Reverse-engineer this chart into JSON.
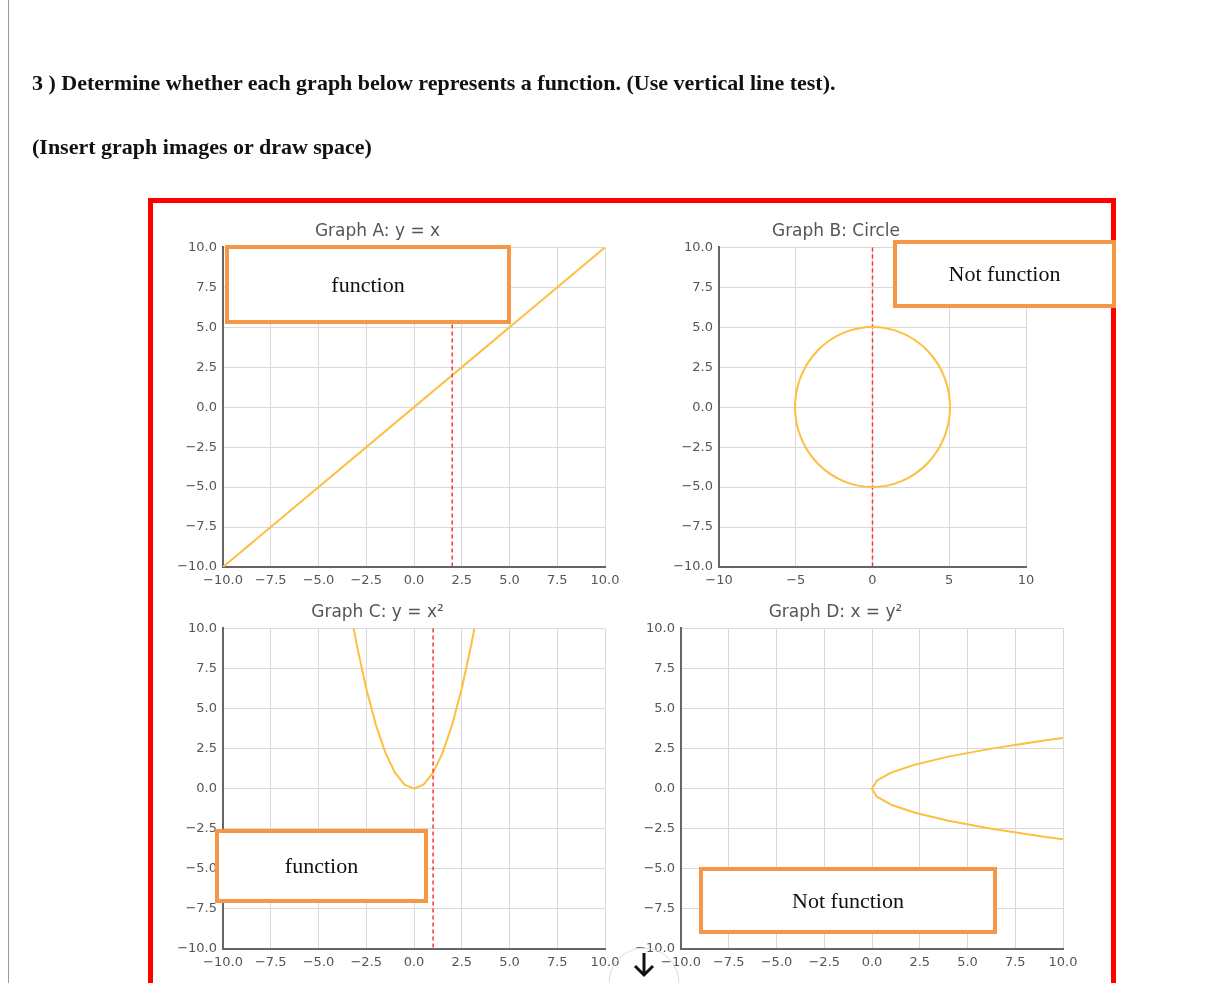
{
  "chart_data": [
    {
      "type": "line",
      "title": "Graph A: y = x",
      "annotations": [
        "3 ) Determine whether each graph below represents a function. (Use vertical line test).",
        "(Insert graph images or draw space)",
        "function"
      ],
      "series": [
        {
          "color": "#fdbf40",
          "x": [
            -10,
            10
          ],
          "values": [
            -10,
            10
          ]
        }
      ],
      "xlim": [
        -10,
        10
      ],
      "ylim": [
        -10,
        10
      ],
      "xticks": [
        {
          "value": -10,
          "label": "−10.0"
        },
        {
          "value": -7.5,
          "label": "−7.5"
        },
        {
          "value": -5,
          "label": "−5.0"
        },
        {
          "value": -2.5,
          "label": "−2.5"
        },
        {
          "value": 0,
          "label": "0.0"
        },
        {
          "value": 2.5,
          "label": "2.5"
        },
        {
          "value": 5,
          "label": "5.0"
        },
        {
          "value": 7.5,
          "label": "7.5"
        },
        {
          "value": 10,
          "label": "10.0"
        }
      ],
      "yticks": [
        {
          "value": -10,
          "label": "−10.0"
        },
        {
          "value": -7.5,
          "label": "−7.5"
        },
        {
          "value": -5,
          "label": "−5.0"
        },
        {
          "value": -2.5,
          "label": "−2.5"
        },
        {
          "value": 0,
          "label": "0.0"
        },
        {
          "value": 2.5,
          "label": "2.5"
        },
        {
          "value": 5,
          "label": "5.0"
        },
        {
          "value": 7.5,
          "label": "7.5"
        },
        {
          "value": 10,
          "label": "10.0"
        }
      ],
      "ref_lines": [
        {
          "axis": "x",
          "value": 2,
          "color": "#ff3333",
          "line_style": "dashed"
        }
      ],
      "grid": true,
      "legend": false,
      "marker": "none"
    },
    {
      "type": "line",
      "title": "Graph B: Circle",
      "annotations": [
        "Not function"
      ],
      "xlim": [
        -10,
        10
      ],
      "ylim": [
        -10,
        10
      ],
      "xticks": [
        {
          "value": -10,
          "label": "−10"
        },
        {
          "value": -5,
          "label": "−5"
        },
        0,
        5,
        10
      ],
      "yticks": [
        {
          "value": -10,
          "label": "−10.0"
        },
        {
          "value": -7.5,
          "label": "−7.5"
        },
        {
          "value": -5,
          "label": "−5.0"
        },
        {
          "value": -2.5,
          "label": "−2.5"
        },
        {
          "value": 0,
          "label": "0.0"
        },
        {
          "value": 2.5,
          "label": "2.5"
        },
        {
          "value": 5,
          "label": "5.0"
        },
        {
          "value": 7.5,
          "label": "7.5"
        },
        {
          "value": 10,
          "label": "10.0"
        }
      ],
      "ref_lines": [
        {
          "axis": "x",
          "value": 0,
          "color": "#ff3333",
          "line_style": "dashed"
        }
      ],
      "grid": true,
      "legend": false
    },
    {
      "type": "line",
      "title": "Graph C: y = x²",
      "annotations": [
        "function"
      ],
      "series": [
        {
          "color": "#fdbf40",
          "x": [
            -3.16,
            -3,
            -2.5,
            -2,
            -1.5,
            -1,
            -0.5,
            0,
            0.5,
            1,
            1.5,
            2,
            2.5,
            3,
            3.16
          ],
          "values": [
            10,
            9,
            6.25,
            4,
            2.25,
            1,
            0.25,
            0,
            0.25,
            1,
            2.25,
            4,
            6.25,
            9,
            10
          ]
        }
      ],
      "xlim": [
        -10,
        10
      ],
      "ylim": [
        -10,
        10
      ],
      "xticks": [
        {
          "value": -10,
          "label": "−10.0"
        },
        {
          "value": -7.5,
          "label": "−7.5"
        },
        {
          "value": -5,
          "label": "−5.0"
        },
        {
          "value": -2.5,
          "label": "−2.5"
        },
        {
          "value": 0,
          "label": "0.0"
        },
        {
          "value": 2.5,
          "label": "2.5"
        },
        {
          "value": 5,
          "label": "5.0"
        },
        {
          "value": 7.5,
          "label": "7.5"
        },
        {
          "value": 10,
          "label": "10.0"
        }
      ],
      "yticks": [
        {
          "value": -10,
          "label": "−10.0"
        },
        {
          "value": -7.5,
          "label": "−7.5"
        },
        {
          "value": -5,
          "label": "−5.0"
        },
        {
          "value": -2.5,
          "label": "−2.5"
        },
        {
          "value": 0,
          "label": "0.0"
        },
        {
          "value": 2.5,
          "label": "2.5"
        },
        {
          "value": 5,
          "label": "5.0"
        },
        {
          "value": 7.5,
          "label": "7.5"
        },
        {
          "value": 10,
          "label": "10.0"
        }
      ],
      "ref_lines": [
        {
          "axis": "x",
          "value": 1,
          "color": "#ff3333",
          "line_style": "dashed"
        }
      ],
      "grid": true,
      "legend": false,
      "marker": "none"
    },
    {
      "type": "line",
      "title": "Graph D: x = y²",
      "annotations": [
        "Not function"
      ],
      "series": [
        {
          "color": "#fdbf40",
          "x": [
            10,
            9,
            6.25,
            4,
            2.25,
            1,
            0.25,
            0,
            0.25,
            1,
            2.25,
            4,
            6.25,
            9,
            10
          ],
          "values": [
            -3.16,
            -3,
            -2.5,
            -2,
            -1.5,
            -1,
            -0.5,
            0,
            0.5,
            1,
            1.5,
            2,
            2.5,
            3,
            3.16
          ]
        }
      ],
      "xlim": [
        -10,
        10
      ],
      "ylim": [
        -10,
        10
      ],
      "xticks": [
        {
          "value": -10,
          "label": "−10.0"
        },
        {
          "value": -7.5,
          "label": "−7.5"
        },
        {
          "value": -5,
          "label": "−5.0"
        },
        {
          "value": -2.5,
          "label": "−2.5"
        },
        {
          "value": 0,
          "label": "0.0"
        },
        {
          "value": 2.5,
          "label": "2.5"
        },
        {
          "value": 5,
          "label": "5.0"
        },
        {
          "value": 7.5,
          "label": "7.5"
        },
        {
          "value": 10,
          "label": "10.0"
        }
      ],
      "yticks": [
        {
          "value": -10,
          "label": "−10.0"
        },
        {
          "value": -7.5,
          "label": "−7.5"
        },
        {
          "value": -5,
          "label": "−5.0"
        },
        {
          "value": -2.5,
          "label": "−2.5"
        },
        {
          "value": 0,
          "label": "0.0"
        },
        {
          "value": 2.5,
          "label": "2.5"
        },
        {
          "value": 5,
          "label": "5.0"
        },
        {
          "value": 7.5,
          "label": "7.5"
        },
        {
          "value": 10,
          "label": "10.0"
        }
      ],
      "grid": true,
      "legend": false,
      "marker": "none"
    }
  ]
}
